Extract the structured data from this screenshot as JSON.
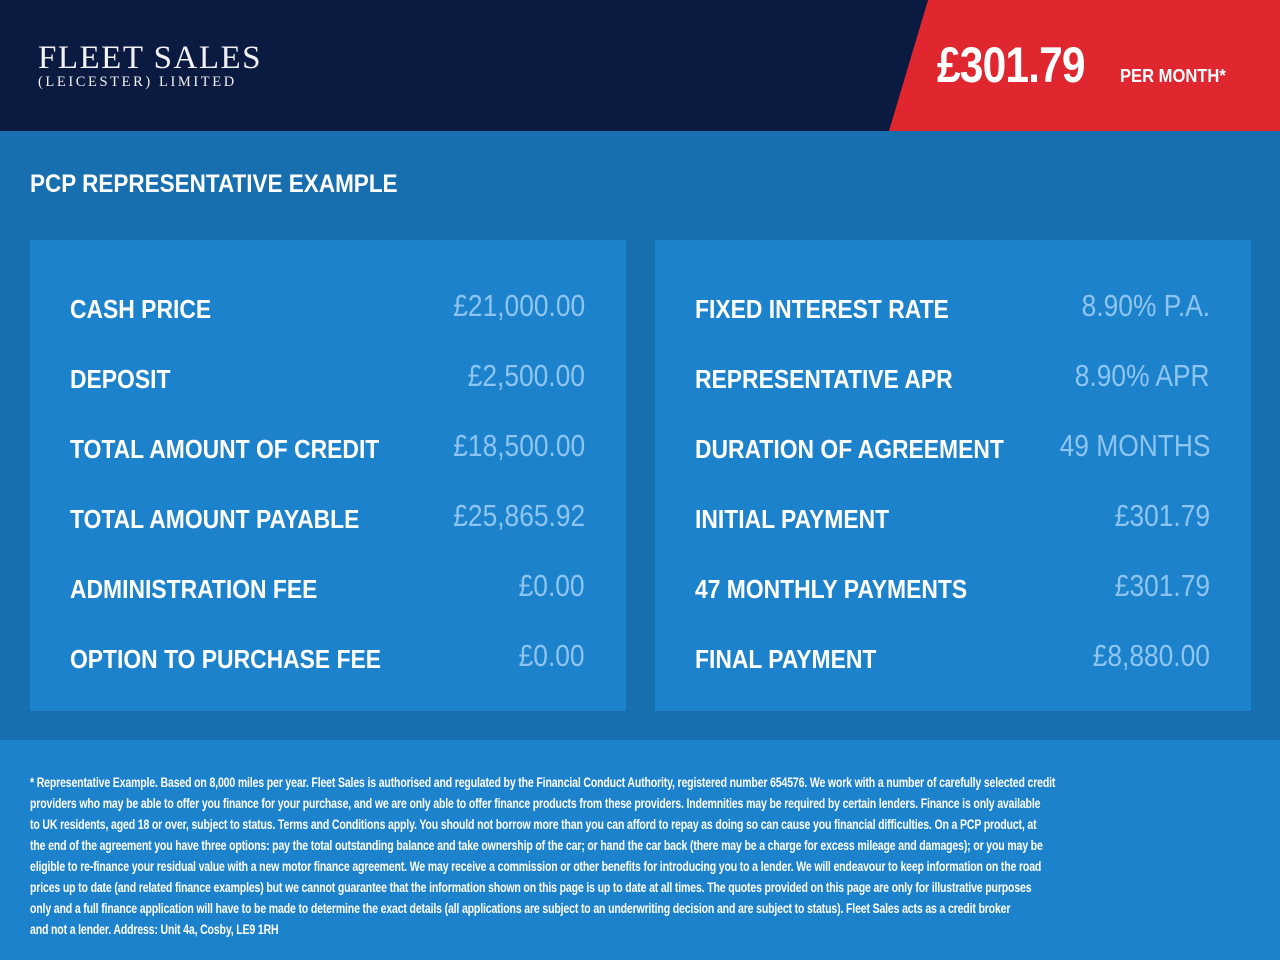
{
  "header": {
    "logo_line1": "FLEET SALES",
    "logo_line2": "(LEICESTER) LIMITED",
    "price": "£301.79",
    "per_month": "PER MONTH*"
  },
  "colors": {
    "navy": "#0b1a40",
    "red": "#e0262f",
    "background": "#176fb0",
    "panel": "#1d82cc",
    "value": "#8ec5f0"
  },
  "section_title": "PCP REPRESENTATIVE EXAMPLE",
  "left_panel": [
    {
      "label": "CASH PRICE",
      "value": "£21,000.00"
    },
    {
      "label": "DEPOSIT",
      "value": "£2,500.00"
    },
    {
      "label": "TOTAL AMOUNT OF CREDIT",
      "value": "£18,500.00"
    },
    {
      "label": "TOTAL AMOUNT PAYABLE",
      "value": "£25,865.92"
    },
    {
      "label": "ADMINISTRATION FEE",
      "value": "£0.00"
    },
    {
      "label": "OPTION TO PURCHASE FEE",
      "value": "£0.00"
    }
  ],
  "right_panel": [
    {
      "label": "FIXED INTEREST RATE",
      "value": "8.90% P.A."
    },
    {
      "label": "REPRESENTATIVE APR",
      "value": "8.90% APR"
    },
    {
      "label": "DURATION OF AGREEMENT",
      "value": "49 MONTHS"
    },
    {
      "label": "INITIAL PAYMENT",
      "value": "£301.79"
    },
    {
      "label": "47 MONTHLY PAYMENTS",
      "value": "£301.79"
    },
    {
      "label": "FINAL PAYMENT",
      "value": "£8,880.00"
    }
  ],
  "disclaimer": [
    "* Representative Example. Based on 8,000 miles per year. Fleet Sales is authorised and regulated by the Financial Conduct Authority, registered number 654576. We work with a number of carefully selected credit",
    "providers who may be able to offer you finance for your purchase, and we are only able to offer finance products from these providers. Indemnities may be required by certain lenders. Finance is only available",
    "to UK residents, aged 18 or over, subject to status. Terms and Conditions apply. You should not borrow more than you can afford to repay as doing so can cause you financial difficulties. On a PCP product, at",
    "the end of the agreement you have three options: pay the total outstanding balance and take ownership of the car; or hand the car back (there may be a charge for excess mileage and damages); or you may be",
    "eligible to re-finance your residual value with a new motor finance agreement. We may receive a commission or other benefits for introducing you to a lender. We will endeavour to keep information on the road",
    "prices up to date (and related finance examples) but we cannot guarantee that the information shown on this page is up to date at all times. The quotes provided on this page are only for illustrative purposes",
    "only and a full finance application will have to be made to determine the exact details (all applications are subject to an underwriting decision and are subject to status). Fleet Sales acts as a credit broker",
    "and not a lender. Address: Unit 4a, Cosby, LE9 1RH"
  ]
}
